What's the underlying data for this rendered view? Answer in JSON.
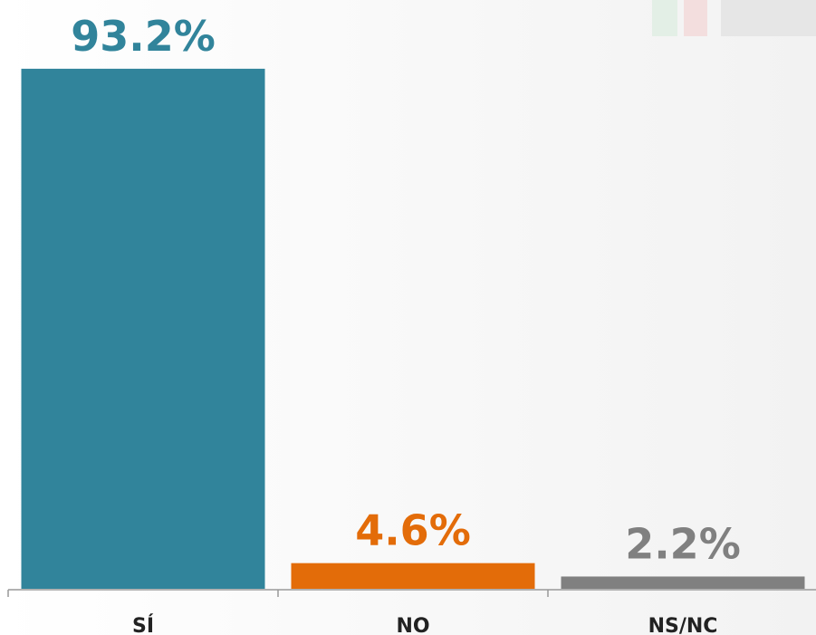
{
  "chart_data": {
    "type": "bar",
    "categories": [
      "SÍ",
      "NO",
      "NS/NC"
    ],
    "values": [
      93.2,
      4.6,
      2.2
    ],
    "value_labels": [
      "93.2%",
      "4.6%",
      "2.2%"
    ],
    "colors": [
      "#31849b",
      "#e36c09",
      "#808080"
    ]
  }
}
